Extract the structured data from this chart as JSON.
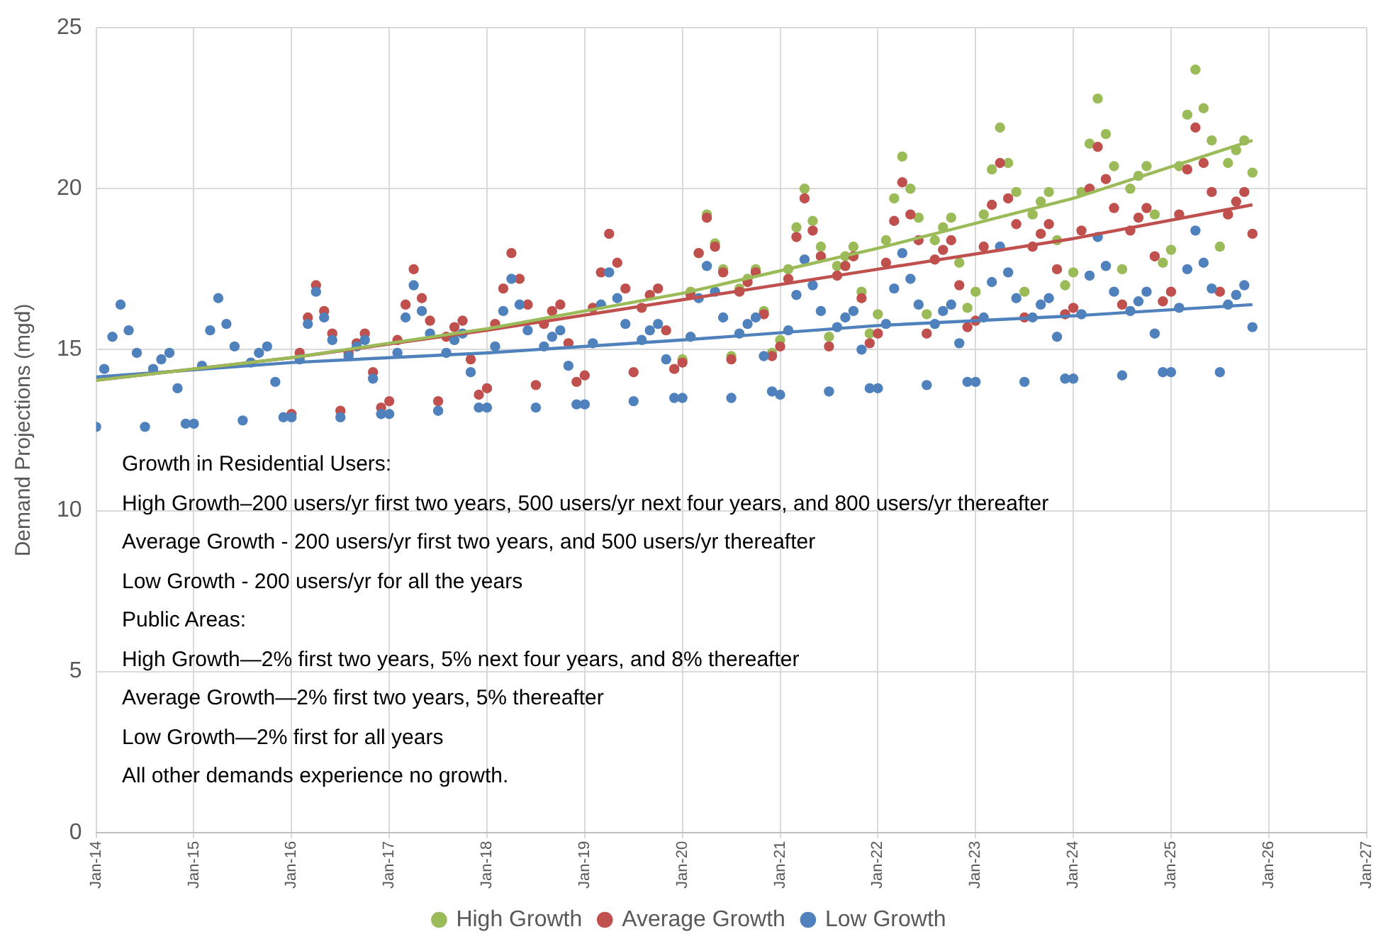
{
  "chart_data": {
    "type": "scatter",
    "ylabel": "Demand Projections (mgd)",
    "xlim": [
      "2014-01",
      "2027-01"
    ],
    "xticks": [
      {
        "value": "2014-01",
        "label": "Jan-14"
      },
      {
        "value": "2015-01",
        "label": "Jan-15"
      },
      {
        "value": "2016-01",
        "label": "Jan-16"
      },
      {
        "value": "2017-01",
        "label": "Jan-17"
      },
      {
        "value": "2018-01",
        "label": "Jan-18"
      },
      {
        "value": "2019-01",
        "label": "Jan-19"
      },
      {
        "value": "2020-01",
        "label": "Jan-20"
      },
      {
        "value": "2021-01",
        "label": "Jan-21"
      },
      {
        "value": "2022-01",
        "label": "Jan-22"
      },
      {
        "value": "2023-01",
        "label": "Jan-23"
      },
      {
        "value": "2024-01",
        "label": "Jan-24"
      },
      {
        "value": "2025-01",
        "label": "Jan-25"
      },
      {
        "value": "2026-01",
        "label": "Jan-26"
      },
      {
        "value": "2027-01",
        "label": "Jan-27"
      }
    ],
    "ylim": [
      0,
      25
    ],
    "yticks": [
      0,
      5,
      10,
      15,
      20,
      25
    ],
    "grid": true,
    "legend": "bottom",
    "marker": "circle",
    "x": [
      "2014-01",
      "2014-02",
      "2014-03",
      "2014-04",
      "2014-05",
      "2014-06",
      "2014-07",
      "2014-08",
      "2014-09",
      "2014-10",
      "2014-11",
      "2014-12",
      "2015-01",
      "2015-02",
      "2015-03",
      "2015-04",
      "2015-05",
      "2015-06",
      "2015-07",
      "2015-08",
      "2015-09",
      "2015-10",
      "2015-11",
      "2015-12",
      "2016-01",
      "2016-02",
      "2016-03",
      "2016-04",
      "2016-05",
      "2016-06",
      "2016-07",
      "2016-08",
      "2016-09",
      "2016-10",
      "2016-11",
      "2016-12",
      "2017-01",
      "2017-02",
      "2017-03",
      "2017-04",
      "2017-05",
      "2017-06",
      "2017-07",
      "2017-08",
      "2017-09",
      "2017-10",
      "2017-11",
      "2017-12",
      "2018-01",
      "2018-02",
      "2018-03",
      "2018-04",
      "2018-05",
      "2018-06",
      "2018-07",
      "2018-08",
      "2018-09",
      "2018-10",
      "2018-11",
      "2018-12",
      "2019-01",
      "2019-02",
      "2019-03",
      "2019-04",
      "2019-05",
      "2019-06",
      "2019-07",
      "2019-08",
      "2019-09",
      "2019-10",
      "2019-11",
      "2019-12",
      "2020-01",
      "2020-02",
      "2020-03",
      "2020-04",
      "2020-05",
      "2020-06",
      "2020-07",
      "2020-08",
      "2020-09",
      "2020-10",
      "2020-11",
      "2020-12",
      "2021-01",
      "2021-02",
      "2021-03",
      "2021-04",
      "2021-05",
      "2021-06",
      "2021-07",
      "2021-08",
      "2021-09",
      "2021-10",
      "2021-11",
      "2021-12",
      "2022-01",
      "2022-02",
      "2022-03",
      "2022-04",
      "2022-05",
      "2022-06",
      "2022-07",
      "2022-08",
      "2022-09",
      "2022-10",
      "2022-11",
      "2022-12",
      "2023-01",
      "2023-02",
      "2023-03",
      "2023-04",
      "2023-05",
      "2023-06",
      "2023-07",
      "2023-08",
      "2023-09",
      "2023-10",
      "2023-11",
      "2023-12",
      "2024-01",
      "2024-02",
      "2024-03",
      "2024-04",
      "2024-05",
      "2024-06",
      "2024-07",
      "2024-08",
      "2024-09",
      "2024-10",
      "2024-11",
      "2024-12",
      "2025-01",
      "2025-02",
      "2025-03",
      "2025-04",
      "2025-05",
      "2025-06",
      "2025-07",
      "2025-08",
      "2025-09",
      "2025-10",
      "2025-11"
    ],
    "series": [
      {
        "name": "High Growth",
        "color": "#9bbb59",
        "values": [
          null,
          null,
          null,
          null,
          null,
          null,
          null,
          null,
          null,
          null,
          null,
          null,
          null,
          null,
          null,
          null,
          null,
          null,
          null,
          null,
          null,
          null,
          null,
          null,
          null,
          null,
          null,
          null,
          null,
          null,
          null,
          null,
          null,
          null,
          null,
          null,
          null,
          null,
          null,
          null,
          null,
          null,
          null,
          null,
          null,
          null,
          null,
          null,
          null,
          null,
          null,
          null,
          null,
          null,
          null,
          null,
          null,
          null,
          null,
          null,
          null,
          null,
          null,
          null,
          null,
          null,
          null,
          null,
          null,
          null,
          null,
          null,
          14.7,
          16.8,
          18.0,
          19.2,
          18.3,
          17.5,
          14.8,
          16.9,
          17.2,
          17.5,
          16.2,
          14.9,
          15.3,
          17.5,
          18.8,
          20.0,
          19.0,
          18.2,
          15.4,
          17.6,
          17.9,
          18.2,
          16.8,
          15.5,
          16.1,
          18.4,
          19.7,
          21.0,
          20.0,
          19.1,
          16.1,
          18.4,
          18.8,
          19.1,
          17.7,
          16.3,
          16.8,
          19.2,
          20.6,
          21.9,
          20.8,
          19.9,
          16.8,
          19.2,
          19.6,
          19.9,
          18.4,
          17.0,
          17.4,
          19.9,
          21.4,
          22.8,
          21.7,
          20.7,
          17.5,
          20.0,
          20.4,
          20.7,
          19.2,
          17.7,
          18.1,
          20.7,
          22.3,
          23.7,
          22.5,
          21.5,
          18.2,
          20.8,
          21.2,
          21.5,
          20.5
        ]
      },
      {
        "name": "Average Growth",
        "color": "#c0504d",
        "values": [
          null,
          null,
          null,
          null,
          null,
          null,
          null,
          null,
          null,
          null,
          null,
          null,
          null,
          null,
          null,
          null,
          null,
          null,
          null,
          null,
          null,
          null,
          null,
          null,
          13.0,
          14.9,
          16.0,
          17.0,
          16.2,
          15.5,
          13.1,
          14.9,
          15.2,
          15.5,
          14.3,
          13.2,
          13.4,
          15.3,
          16.4,
          17.5,
          16.6,
          15.9,
          13.4,
          15.4,
          15.7,
          15.9,
          14.7,
          13.6,
          13.8,
          15.8,
          16.9,
          18.0,
          17.2,
          16.4,
          13.9,
          15.8,
          16.2,
          16.4,
          15.2,
          14.0,
          14.2,
          16.3,
          17.4,
          18.6,
          17.7,
          16.9,
          14.3,
          16.3,
          16.7,
          16.9,
          15.6,
          14.4,
          14.6,
          16.7,
          18.0,
          19.1,
          18.2,
          17.4,
          14.7,
          16.8,
          17.1,
          17.4,
          16.1,
          14.8,
          15.1,
          17.2,
          18.5,
          19.7,
          18.7,
          17.9,
          15.1,
          17.3,
          17.6,
          17.9,
          16.6,
          15.2,
          15.5,
          17.7,
          19.0,
          20.2,
          19.2,
          18.4,
          15.5,
          17.8,
          18.1,
          18.4,
          17.0,
          15.7,
          15.9,
          18.2,
          19.5,
          20.8,
          19.7,
          18.9,
          16.0,
          18.2,
          18.6,
          18.9,
          17.5,
          16.1,
          16.3,
          18.7,
          20.0,
          21.3,
          20.3,
          19.4,
          16.4,
          18.7,
          19.1,
          19.4,
          17.9,
          16.5,
          16.8,
          19.2,
          20.6,
          21.9,
          20.8,
          19.9,
          16.8,
          19.2,
          19.6,
          19.9,
          18.6
        ]
      },
      {
        "name": "Low Growth",
        "color": "#4f81bd",
        "values": [
          12.6,
          14.4,
          15.4,
          16.4,
          15.6,
          14.9,
          12.6,
          14.4,
          14.7,
          14.9,
          13.8,
          12.7,
          12.7,
          14.5,
          15.6,
          16.6,
          15.8,
          15.1,
          12.8,
          14.6,
          14.9,
          15.1,
          14.0,
          12.9,
          12.9,
          14.7,
          15.8,
          16.8,
          16.0,
          15.3,
          12.9,
          14.8,
          15.1,
          15.3,
          14.1,
          13.0,
          13.0,
          14.9,
          16.0,
          17.0,
          16.2,
          15.5,
          13.1,
          14.9,
          15.3,
          15.5,
          14.3,
          13.2,
          13.2,
          15.1,
          16.2,
          17.2,
          16.4,
          15.6,
          13.2,
          15.1,
          15.4,
          15.6,
          14.5,
          13.3,
          13.3,
          15.2,
          16.4,
          17.4,
          16.6,
          15.8,
          13.4,
          15.3,
          15.6,
          15.8,
          14.7,
          13.5,
          13.5,
          15.4,
          16.6,
          17.6,
          16.8,
          16.0,
          13.5,
          15.5,
          15.8,
          16.0,
          14.8,
          13.7,
          13.6,
          15.6,
          16.7,
          17.8,
          17.0,
          16.2,
          13.7,
          15.7,
          16.0,
          16.2,
          15.0,
          13.8,
          13.8,
          15.8,
          16.9,
          18.0,
          17.2,
          16.4,
          13.9,
          15.8,
          16.2,
          16.4,
          15.2,
          14.0,
          14.0,
          16.0,
          17.1,
          18.2,
          17.4,
          16.6,
          14.0,
          16.0,
          16.4,
          16.6,
          15.4,
          14.1,
          14.1,
          16.1,
          17.3,
          18.5,
          17.6,
          16.8,
          14.2,
          16.2,
          16.5,
          16.8,
          15.5,
          14.3,
          14.3,
          16.3,
          17.5,
          18.7,
          17.7,
          16.9,
          14.3,
          16.4,
          16.7,
          17.0,
          15.7
        ]
      },
      {
        "type": "line",
        "color": "#9bbb59",
        "marker": "none",
        "x": [
          "2014-01",
          "2016-01",
          "2018-01",
          "2020-01",
          "2022-01",
          "2024-01",
          "2025-11"
        ],
        "values": [
          14.05,
          14.75,
          15.65,
          16.75,
          18.15,
          19.7,
          21.5
        ]
      },
      {
        "type": "line",
        "color": "#c0504d",
        "marker": "none",
        "x": [
          "2014-01",
          "2016-01",
          "2018-01",
          "2020-01",
          "2022-01",
          "2024-01",
          "2025-11"
        ],
        "values": [
          14.05,
          14.75,
          15.6,
          16.55,
          17.5,
          18.45,
          19.5
        ]
      },
      {
        "type": "line",
        "color": "#4f81bd",
        "marker": "none",
        "x": [
          "2014-01",
          "2016-01",
          "2018-01",
          "2020-01",
          "2022-01",
          "2024-01",
          "2025-11"
        ],
        "values": [
          14.15,
          14.6,
          14.9,
          15.3,
          15.75,
          16.05,
          16.4
        ]
      }
    ],
    "annotations": [
      "Growth in Residential Users:",
      "High Growth–200 users/yr first two years, 500 users/yr next four years, and 800 users/yr thereafter",
      "Average Growth - 200 users/yr first two years, and 500 users/yr thereafter",
      "Low Growth - 200 users/yr for all the years",
      "Public Areas:",
      "High Growth—2% first two years, 5% next four years, and 8% thereafter",
      "Average Growth—2% first two years, 5% thereafter",
      "Low Growth—2% first for all years",
      "All other demands experience no growth."
    ]
  }
}
